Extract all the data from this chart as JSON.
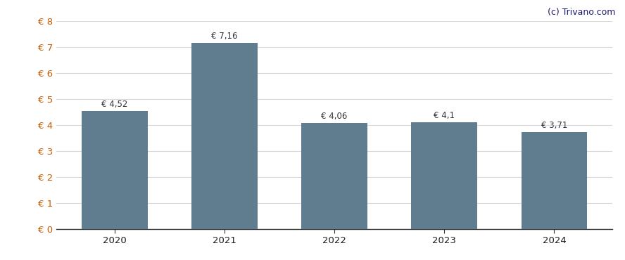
{
  "categories": [
    "2020",
    "2021",
    "2022",
    "2023",
    "2024"
  ],
  "values": [
    4.52,
    7.16,
    4.06,
    4.1,
    3.71
  ],
  "labels": [
    "€ 4,52",
    "€ 7,16",
    "€ 4,06",
    "€ 4,1",
    "€ 3,71"
  ],
  "bar_color": "#607d8f",
  "ylim": [
    0,
    8
  ],
  "yticks": [
    0,
    1,
    2,
    3,
    4,
    5,
    6,
    7,
    8
  ],
  "ytick_labels": [
    "€ 0",
    "€ 1",
    "€ 2",
    "€ 3",
    "€ 4",
    "€ 5",
    "€ 6",
    "€ 7",
    "€ 8"
  ],
  "background_color": "#ffffff",
  "grid_color": "#d8d8d8",
  "watermark": "(c) Trivano.com",
  "watermark_color": "#1a1a6e",
  "ytick_color": "#c85a00",
  "xtick_color": "#1a1a1a",
  "bar_label_color": "#333333",
  "bar_label_fontsize": 8.5,
  "tick_fontsize": 9.5,
  "watermark_fontsize": 9,
  "bar_width": 0.6
}
